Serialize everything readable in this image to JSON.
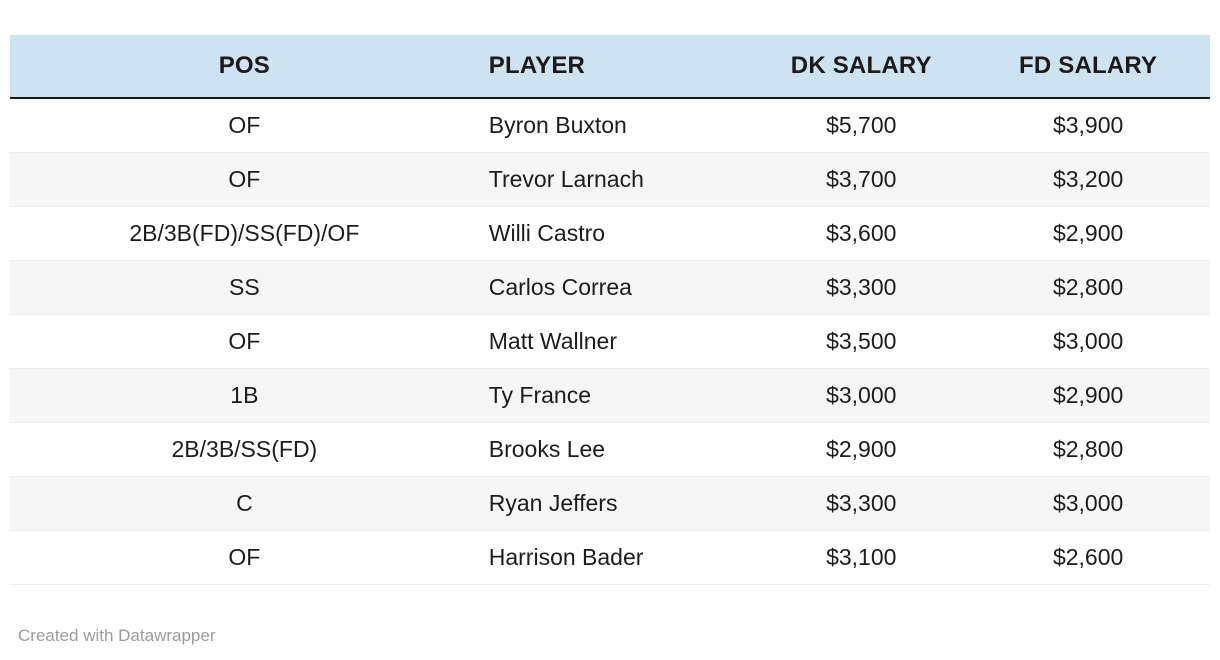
{
  "chart_data": {
    "type": "table",
    "columns": [
      "POS",
      "PLAYER",
      "DK SALARY",
      "FD SALARY"
    ],
    "rows": [
      [
        "OF",
        "Byron Buxton",
        "$5,700",
        "$3,900"
      ],
      [
        "OF",
        "Trevor Larnach",
        "$3,700",
        "$3,200"
      ],
      [
        "2B/3B(FD)/SS(FD)/OF",
        "Willi Castro",
        "$3,600",
        "$2,900"
      ],
      [
        "SS",
        "Carlos Correa",
        "$3,300",
        "$2,800"
      ],
      [
        "OF",
        "Matt Wallner",
        "$3,500",
        "$3,000"
      ],
      [
        "1B",
        "Ty France",
        "$3,000",
        "$2,900"
      ],
      [
        "2B/3B/SS(FD)",
        "Brooks Lee",
        "$2,900",
        "$2,800"
      ],
      [
        "C",
        "Ryan Jeffers",
        "$3,300",
        "$3,000"
      ],
      [
        "OF",
        "Harrison Bader",
        "$3,100",
        "$2,600"
      ]
    ],
    "layout": {
      "header_background": "#cde3f0",
      "alt_row_background": "#f6f6f6",
      "header_border_color": "#1a1a1a",
      "grid": "horizontal"
    }
  },
  "footer": {
    "credit": "Created with Datawrapper"
  }
}
